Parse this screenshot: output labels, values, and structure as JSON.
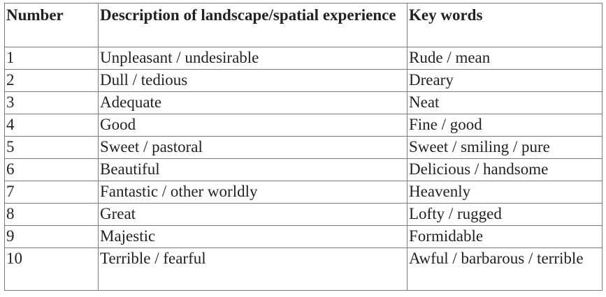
{
  "table": {
    "headers": [
      "Number",
      "Description of landscape/spatial experience",
      "Key words"
    ],
    "rows": [
      [
        "1",
        "Unpleasant / undesirable",
        "Rude / mean"
      ],
      [
        "2",
        "Dull / tedious",
        "Dreary"
      ],
      [
        "3",
        "Adequate",
        "Neat"
      ],
      [
        "4",
        "Good",
        "Fine /  good"
      ],
      [
        "5",
        "Sweet / pastoral",
        "Sweet / smiling / pure"
      ],
      [
        "6",
        "Beautiful",
        "Delicious / handsome"
      ],
      [
        "7",
        "Fantastic / other worldly",
        "Heavenly"
      ],
      [
        "8",
        "Great",
        "Lofty / rugged"
      ],
      [
        "9",
        "Majestic",
        "Formidable"
      ],
      [
        "10",
        "Terrible / fearful",
        "Awful / barbarous / terrible"
      ]
    ]
  }
}
